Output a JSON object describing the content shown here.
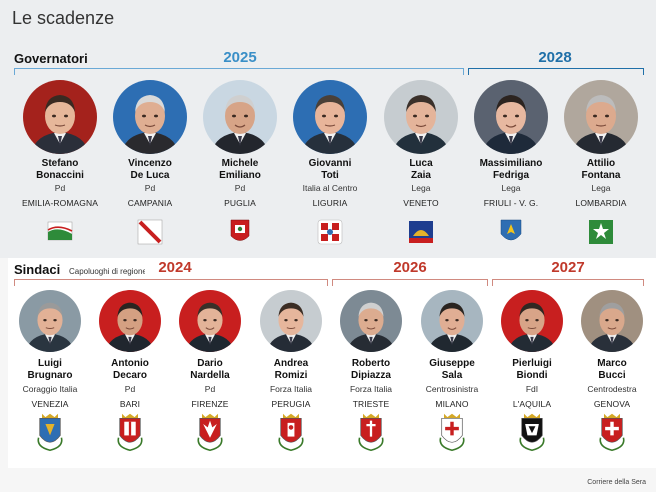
{
  "title": "Le scadenze",
  "governatori": {
    "label": "Governatori",
    "years": [
      "2025",
      "2028"
    ],
    "colors": {
      "y2025": "#3a8fc7",
      "y2028": "#1f6fa8"
    },
    "people": [
      {
        "first": "Stefano",
        "last": "Bonaccini",
        "party": "Pd",
        "region": "EMILIA-ROMAGNA",
        "icon": "emilia-romagna-flag-icon"
      },
      {
        "first": "Vincenzo",
        "last": "De Luca",
        "party": "Pd",
        "region": "CAMPANIA",
        "icon": "campania-flag-icon"
      },
      {
        "first": "Michele",
        "last": "Emiliano",
        "party": "Pd",
        "region": "PUGLIA",
        "icon": "puglia-flag-icon"
      },
      {
        "first": "Giovanni",
        "last": "Toti",
        "party": "Italia al Centro",
        "region": "LIGURIA",
        "icon": "liguria-flag-icon"
      },
      {
        "first": "Luca",
        "last": "Zaia",
        "party": "Lega",
        "region": "VENETO",
        "icon": "veneto-flag-icon"
      },
      {
        "first": "Massimiliano",
        "last": "Fedriga",
        "party": "Lega",
        "region": "FRIULI - V. G.",
        "icon": "friuli-flag-icon"
      },
      {
        "first": "Attilio",
        "last": "Fontana",
        "party": "Lega",
        "region": "LOMBARDIA",
        "icon": "lombardia-flag-icon"
      }
    ]
  },
  "sindaci": {
    "label": "Sindaci",
    "sublabel": "Capoluoghi di regione",
    "years": [
      "2024",
      "2026",
      "2027"
    ],
    "colors": {
      "accent": "#c0392b"
    },
    "people": [
      {
        "first": "Luigi",
        "last": "Brugnaro",
        "party": "Coraggio Italia",
        "city": "VENEZIA",
        "icon": "venezia-crest-icon"
      },
      {
        "first": "Antonio",
        "last": "Decaro",
        "party": "Pd",
        "city": "BARI",
        "icon": "bari-crest-icon"
      },
      {
        "first": "Dario",
        "last": "Nardella",
        "party": "Pd",
        "city": "FIRENZE",
        "icon": "firenze-crest-icon"
      },
      {
        "first": "Andrea",
        "last": "Romizi",
        "party": "Forza Italia",
        "city": "PERUGIA",
        "icon": "perugia-crest-icon"
      },
      {
        "first": "Roberto",
        "last": "Dipiazza",
        "party": "Forza Italia",
        "city": "TRIESTE",
        "icon": "trieste-crest-icon"
      },
      {
        "first": "Giuseppe",
        "last": "Sala",
        "party": "Centrosinistra",
        "city": "MILANO",
        "icon": "milano-crest-icon"
      },
      {
        "first": "Pierluigi",
        "last": "Biondi",
        "party": "FdI",
        "city": "L'AQUILA",
        "icon": "laquila-crest-icon"
      },
      {
        "first": "Marco",
        "last": "Bucci",
        "party": "Centrodestra",
        "city": "GENOVA",
        "icon": "genova-crest-icon"
      }
    ]
  },
  "credit": "Corriere della Sera"
}
